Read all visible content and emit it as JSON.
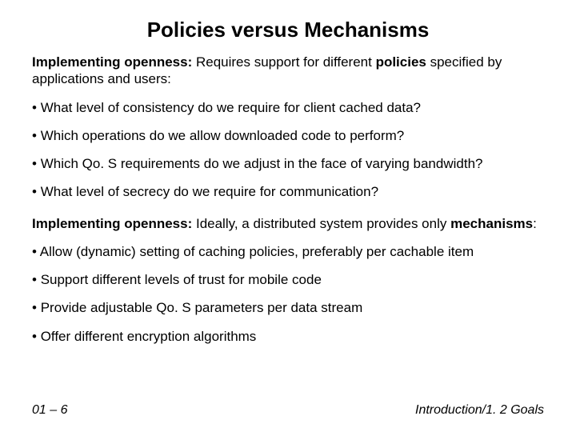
{
  "title": "Policies versus Mechanisms",
  "section1": {
    "lead": "Implementing openness:",
    "body": " Requires support for different ",
    "trail": "policies",
    "after": " specified by applications and users:"
  },
  "bullets1": [
    "What level of consistency do we require for client cached data?",
    "Which operations do we allow downloaded code to perform?",
    "Which Qo. S requirements do we adjust in the face of varying bandwidth?",
    "What level of secrecy do we require for communication?"
  ],
  "section2": {
    "lead": "Implementing openness:",
    "body": " Ideally, a distributed system provides only ",
    "trail": "mechanisms",
    "after": ":"
  },
  "bullets2": [
    "Allow (dynamic) setting of caching policies, preferably per cachable item",
    "Support different levels of trust for mobile code",
    "Provide adjustable Qo. S parameters per data stream",
    "Offer different encryption algorithms"
  ],
  "footer": {
    "left": "01 – 6",
    "right": "Introduction/1. 2 Goals"
  },
  "colors": {
    "background": "#ffffff",
    "text": "#000000"
  }
}
